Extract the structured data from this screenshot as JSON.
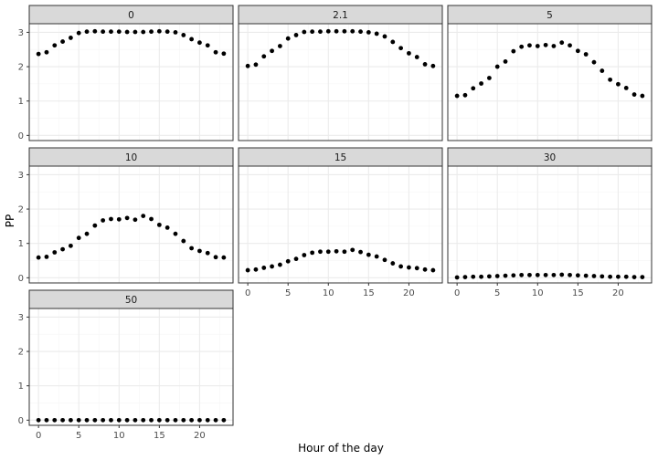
{
  "chart_data": {
    "type": "scatter",
    "facet_layout": "3 columns",
    "xlabel": "Hour of the day",
    "ylabel": "PP",
    "xlim": [
      -1.15,
      24.15
    ],
    "ylim": [
      -0.15,
      3.25
    ],
    "x_ticks": [
      0,
      5,
      10,
      15,
      20
    ],
    "y_ticks": [
      0,
      1,
      2,
      3
    ],
    "x_tick_labels": [
      "0",
      "5",
      "10",
      "15",
      "20"
    ],
    "y_tick_labels": [
      "0",
      "1",
      "2",
      "3"
    ],
    "grid": true,
    "hours": [
      0,
      1,
      2,
      3,
      4,
      5,
      6,
      7,
      8,
      9,
      10,
      11,
      12,
      13,
      14,
      15,
      16,
      17,
      18,
      19,
      20,
      21,
      22,
      23
    ],
    "panels": [
      {
        "label": "0",
        "values": [
          2.37,
          2.42,
          2.62,
          2.73,
          2.84,
          2.98,
          3.02,
          3.03,
          3.02,
          3.02,
          3.02,
          3.01,
          3.01,
          3.01,
          3.02,
          3.03,
          3.02,
          3.0,
          2.92,
          2.8,
          2.7,
          2.62,
          2.42,
          2.38
        ]
      },
      {
        "label": "2.1",
        "values": [
          2.02,
          2.06,
          2.3,
          2.46,
          2.6,
          2.82,
          2.92,
          3.01,
          3.02,
          3.02,
          3.03,
          3.03,
          3.03,
          3.03,
          3.02,
          3.0,
          2.96,
          2.88,
          2.72,
          2.54,
          2.39,
          2.28,
          2.07,
          2.02
        ]
      },
      {
        "label": "5",
        "values": [
          1.15,
          1.17,
          1.37,
          1.51,
          1.67,
          2.0,
          2.15,
          2.45,
          2.58,
          2.62,
          2.6,
          2.63,
          2.6,
          2.7,
          2.62,
          2.46,
          2.36,
          2.13,
          1.88,
          1.62,
          1.49,
          1.38,
          1.19,
          1.15
        ]
      },
      {
        "label": "10",
        "values": [
          0.59,
          0.61,
          0.74,
          0.83,
          0.93,
          1.16,
          1.28,
          1.52,
          1.67,
          1.71,
          1.7,
          1.74,
          1.69,
          1.8,
          1.71,
          1.54,
          1.46,
          1.28,
          1.07,
          0.86,
          0.78,
          0.72,
          0.6,
          0.59
        ]
      },
      {
        "label": "15",
        "values": [
          0.22,
          0.24,
          0.29,
          0.33,
          0.38,
          0.48,
          0.55,
          0.66,
          0.73,
          0.76,
          0.76,
          0.77,
          0.76,
          0.81,
          0.75,
          0.67,
          0.62,
          0.52,
          0.42,
          0.33,
          0.3,
          0.28,
          0.24,
          0.22
        ]
      },
      {
        "label": "30",
        "values": [
          0.01,
          0.02,
          0.03,
          0.03,
          0.04,
          0.05,
          0.06,
          0.07,
          0.08,
          0.08,
          0.08,
          0.08,
          0.08,
          0.09,
          0.08,
          0.07,
          0.06,
          0.05,
          0.04,
          0.03,
          0.03,
          0.03,
          0.02,
          0.02
        ]
      },
      {
        "label": "50",
        "values": [
          0,
          0,
          0,
          0,
          0,
          0,
          0,
          0,
          0,
          0,
          0,
          0,
          0,
          0,
          0,
          0,
          0,
          0,
          0,
          0,
          0,
          0,
          0,
          0
        ]
      }
    ],
    "colors": {
      "point": "#000000",
      "panel_border": "#333333",
      "strip_fill": "#d9d9d9",
      "grid_major": "#ebebeb",
      "grid_minor": "#f5f5f5",
      "text": "#4d4d4d",
      "strip_text": "#1a1a1a",
      "title_text": "#000000"
    }
  }
}
